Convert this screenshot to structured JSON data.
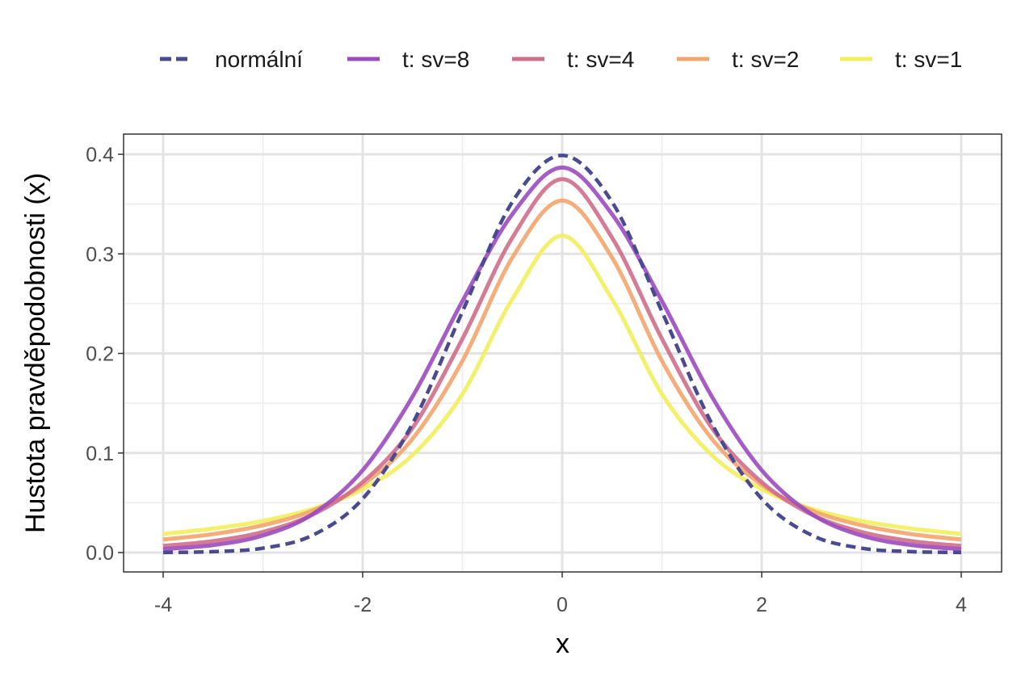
{
  "chart_data": {
    "type": "line",
    "title": "",
    "xlabel": "x",
    "ylabel": "Hustota pravděpodobnosti (x)",
    "xlim": [
      -4,
      4
    ],
    "ylim": [
      0,
      0.4
    ],
    "x_ticks": [
      -4,
      -2,
      0,
      2,
      4
    ],
    "x_tick_labels": [
      "-4",
      "-2",
      "0",
      "2",
      "4"
    ],
    "y_ticks": [
      0.0,
      0.1,
      0.2,
      0.3,
      0.4
    ],
    "y_tick_labels": [
      "0.0",
      "0.1",
      "0.2",
      "0.3",
      "0.4"
    ],
    "grid": true,
    "legend_position": "top",
    "x": [
      -4,
      -3.5,
      -3,
      -2.5,
      -2,
      -1.5,
      -1,
      -0.5,
      0,
      0.5,
      1,
      1.5,
      2,
      2.5,
      3,
      3.5,
      4
    ],
    "series": [
      {
        "name": "normální",
        "color": "#4b4a8f",
        "dash": "dashed",
        "values": [
          0.0001,
          0.0009,
          0.0044,
          0.0175,
          0.054,
          0.1295,
          0.242,
          0.3521,
          0.3989,
          0.3521,
          0.242,
          0.1295,
          0.054,
          0.0175,
          0.0044,
          0.0009,
          0.0001
        ]
      },
      {
        "name": "t: sv=8",
        "color": "#9b4bbf",
        "dash": "solid",
        "values": [
          0.0034,
          0.0075,
          0.0171,
          0.0387,
          0.0827,
          0.1567,
          0.2526,
          0.3398,
          0.3867,
          0.3398,
          0.2526,
          0.1567,
          0.0827,
          0.0387,
          0.0171,
          0.0075,
          0.0034
        ]
      },
      {
        "name": "t: sv=4",
        "color": "#cf6e8b",
        "dash": "solid",
        "values": [
          0.0067,
          0.0115,
          0.0207,
          0.0382,
          0.0707,
          0.1252,
          0.2147,
          0.3162,
          0.375,
          0.3162,
          0.2147,
          0.1252,
          0.0707,
          0.0382,
          0.0207,
          0.0115,
          0.0067
        ]
      },
      {
        "name": "t: sv=2",
        "color": "#f2a56e",
        "dash": "solid",
        "values": [
          0.0131,
          0.0185,
          0.0274,
          0.0422,
          0.068,
          0.1143,
          0.1925,
          0.2962,
          0.3536,
          0.2962,
          0.1925,
          0.1143,
          0.068,
          0.0422,
          0.0274,
          0.0185,
          0.0131
        ]
      },
      {
        "name": "t: sv=1",
        "color": "#f2ee5c",
        "dash": "solid",
        "values": [
          0.0187,
          0.0241,
          0.0318,
          0.0439,
          0.0637,
          0.0979,
          0.1592,
          0.2546,
          0.3183,
          0.2546,
          0.1592,
          0.0979,
          0.0637,
          0.0439,
          0.0318,
          0.0241,
          0.0187
        ]
      }
    ]
  }
}
